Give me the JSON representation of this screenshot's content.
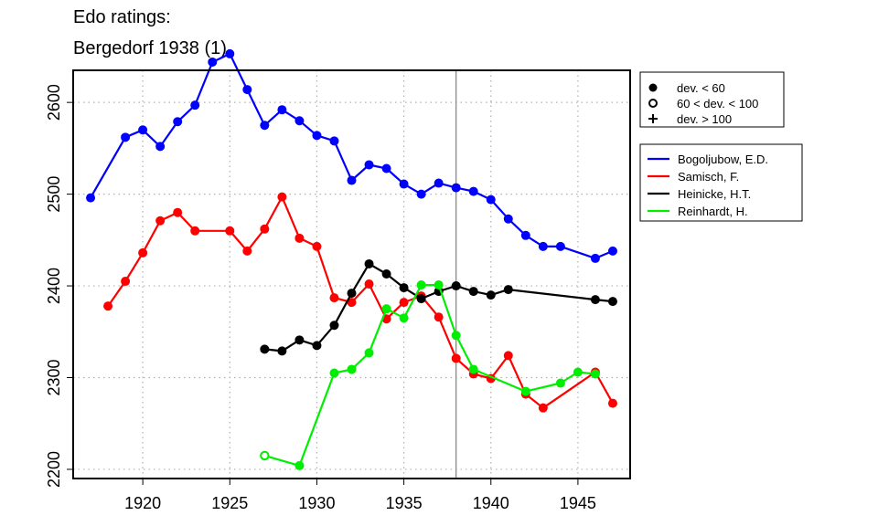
{
  "chart_data": {
    "type": "line",
    "title_line1": "Edo ratings:",
    "title_line2": "Bergedorf 1938 (1)",
    "xlabel": "",
    "ylabel": "",
    "xlim": [
      1916,
      1948
    ],
    "ylim": [
      2190,
      2635
    ],
    "x_ticks": [
      1920,
      1925,
      1930,
      1935,
      1940,
      1945
    ],
    "y_ticks": [
      2200,
      2300,
      2400,
      2500,
      2600
    ],
    "grid": true,
    "vline": 1938,
    "legend_markers": [
      {
        "symbol": "filled-circle",
        "label": "dev. < 60"
      },
      {
        "symbol": "open-circle",
        "label": "60 < dev. < 100"
      },
      {
        "symbol": "plus",
        "label": "dev. > 100"
      }
    ],
    "series": [
      {
        "name": "Bogoljubow, E.D.",
        "color": "#0000ff",
        "points": [
          {
            "x": 1917,
            "y": 2496,
            "m": "filled"
          },
          {
            "x": 1919,
            "y": 2562,
            "m": "filled"
          },
          {
            "x": 1920,
            "y": 2570,
            "m": "filled"
          },
          {
            "x": 1921,
            "y": 2552,
            "m": "filled"
          },
          {
            "x": 1922,
            "y": 2579,
            "m": "filled"
          },
          {
            "x": 1923,
            "y": 2597,
            "m": "filled"
          },
          {
            "x": 1924,
            "y": 2644,
            "m": "filled"
          },
          {
            "x": 1925,
            "y": 2653,
            "m": "filled"
          },
          {
            "x": 1926,
            "y": 2614,
            "m": "filled"
          },
          {
            "x": 1927,
            "y": 2575,
            "m": "filled"
          },
          {
            "x": 1928,
            "y": 2592,
            "m": "filled"
          },
          {
            "x": 1929,
            "y": 2580,
            "m": "filled"
          },
          {
            "x": 1930,
            "y": 2564,
            "m": "filled"
          },
          {
            "x": 1931,
            "y": 2558,
            "m": "filled"
          },
          {
            "x": 1932,
            "y": 2515,
            "m": "filled"
          },
          {
            "x": 1933,
            "y": 2532,
            "m": "filled"
          },
          {
            "x": 1934,
            "y": 2528,
            "m": "filled"
          },
          {
            "x": 1935,
            "y": 2511,
            "m": "filled"
          },
          {
            "x": 1936,
            "y": 2500,
            "m": "filled"
          },
          {
            "x": 1937,
            "y": 2512,
            "m": "filled"
          },
          {
            "x": 1938,
            "y": 2507,
            "m": "filled"
          },
          {
            "x": 1939,
            "y": 2503,
            "m": "filled"
          },
          {
            "x": 1940,
            "y": 2494,
            "m": "filled"
          },
          {
            "x": 1941,
            "y": 2473,
            "m": "filled"
          },
          {
            "x": 1942,
            "y": 2455,
            "m": "filled"
          },
          {
            "x": 1943,
            "y": 2443,
            "m": "filled"
          },
          {
            "x": 1944,
            "y": 2443,
            "m": "filled"
          },
          {
            "x": 1946,
            "y": 2430,
            "m": "filled"
          },
          {
            "x": 1947,
            "y": 2438,
            "m": "filled"
          }
        ]
      },
      {
        "name": "Samisch, F.",
        "color": "#ff0000",
        "points": [
          {
            "x": 1918,
            "y": 2378,
            "m": "filled"
          },
          {
            "x": 1919,
            "y": 2405,
            "m": "filled"
          },
          {
            "x": 1920,
            "y": 2436,
            "m": "filled"
          },
          {
            "x": 1921,
            "y": 2471,
            "m": "filled"
          },
          {
            "x": 1922,
            "y": 2480,
            "m": "filled"
          },
          {
            "x": 1923,
            "y": 2460,
            "m": "filled"
          },
          {
            "x": 1925,
            "y": 2460,
            "m": "filled"
          },
          {
            "x": 1926,
            "y": 2438,
            "m": "filled"
          },
          {
            "x": 1927,
            "y": 2462,
            "m": "filled"
          },
          {
            "x": 1928,
            "y": 2497,
            "m": "filled"
          },
          {
            "x": 1929,
            "y": 2452,
            "m": "filled"
          },
          {
            "x": 1930,
            "y": 2443,
            "m": "filled"
          },
          {
            "x": 1931,
            "y": 2387,
            "m": "filled"
          },
          {
            "x": 1932,
            "y": 2382,
            "m": "filled"
          },
          {
            "x": 1933,
            "y": 2402,
            "m": "filled"
          },
          {
            "x": 1934,
            "y": 2364,
            "m": "filled"
          },
          {
            "x": 1935,
            "y": 2382,
            "m": "filled"
          },
          {
            "x": 1936,
            "y": 2389,
            "m": "filled"
          },
          {
            "x": 1937,
            "y": 2366,
            "m": "filled"
          },
          {
            "x": 1938,
            "y": 2321,
            "m": "filled"
          },
          {
            "x": 1939,
            "y": 2304,
            "m": "filled"
          },
          {
            "x": 1940,
            "y": 2299,
            "m": "filled"
          },
          {
            "x": 1941,
            "y": 2324,
            "m": "filled"
          },
          {
            "x": 1942,
            "y": 2282,
            "m": "filled"
          },
          {
            "x": 1943,
            "y": 2267,
            "m": "filled"
          },
          {
            "x": 1946,
            "y": 2306,
            "m": "filled"
          },
          {
            "x": 1947,
            "y": 2272,
            "m": "filled"
          }
        ]
      },
      {
        "name": "Heinicke, H.T.",
        "color": "#000000",
        "points": [
          {
            "x": 1927,
            "y": 2331,
            "m": "filled"
          },
          {
            "x": 1928,
            "y": 2329,
            "m": "filled"
          },
          {
            "x": 1929,
            "y": 2341,
            "m": "filled"
          },
          {
            "x": 1930,
            "y": 2335,
            "m": "filled"
          },
          {
            "x": 1931,
            "y": 2357,
            "m": "filled"
          },
          {
            "x": 1932,
            "y": 2392,
            "m": "filled"
          },
          {
            "x": 1933,
            "y": 2424,
            "m": "filled"
          },
          {
            "x": 1934,
            "y": 2413,
            "m": "filled"
          },
          {
            "x": 1935,
            "y": 2398,
            "m": "filled"
          },
          {
            "x": 1936,
            "y": 2386,
            "m": "filled"
          },
          {
            "x": 1937,
            "y": 2394,
            "m": "filled"
          },
          {
            "x": 1938,
            "y": 2400,
            "m": "filled"
          },
          {
            "x": 1939,
            "y": 2394,
            "m": "filled"
          },
          {
            "x": 1940,
            "y": 2390,
            "m": "filled"
          },
          {
            "x": 1941,
            "y": 2396,
            "m": "filled"
          },
          {
            "x": 1946,
            "y": 2385,
            "m": "filled"
          },
          {
            "x": 1947,
            "y": 2383,
            "m": "filled"
          }
        ]
      },
      {
        "name": "Reinhardt, H.",
        "color": "#00ee00",
        "points": [
          {
            "x": 1927,
            "y": 2215,
            "m": "open"
          },
          {
            "x": 1929,
            "y": 2204,
            "m": "filled"
          },
          {
            "x": 1931,
            "y": 2305,
            "m": "filled"
          },
          {
            "x": 1932,
            "y": 2309,
            "m": "filled"
          },
          {
            "x": 1933,
            "y": 2327,
            "m": "filled"
          },
          {
            "x": 1934,
            "y": 2375,
            "m": "filled"
          },
          {
            "x": 1935,
            "y": 2365,
            "m": "filled"
          },
          {
            "x": 1936,
            "y": 2401,
            "m": "filled"
          },
          {
            "x": 1937,
            "y": 2401,
            "m": "filled"
          },
          {
            "x": 1938,
            "y": 2346,
            "m": "filled"
          },
          {
            "x": 1939,
            "y": 2309,
            "m": "filled"
          },
          {
            "x": 1942,
            "y": 2285,
            "m": "filled"
          },
          {
            "x": 1944,
            "y": 2294,
            "m": "filled"
          },
          {
            "x": 1945,
            "y": 2306,
            "m": "filled"
          },
          {
            "x": 1946,
            "y": 2304,
            "m": "filled"
          }
        ]
      }
    ]
  }
}
